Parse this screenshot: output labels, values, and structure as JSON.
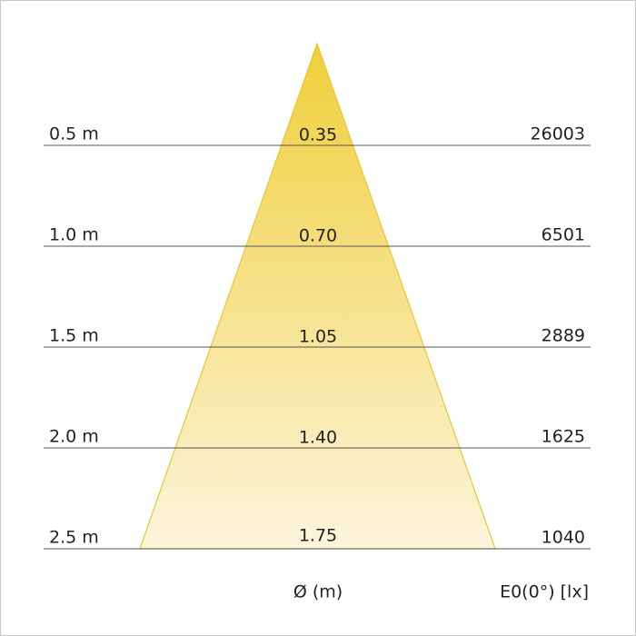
{
  "rows": [
    {
      "distance": "0.5 m",
      "diameter": "0.35",
      "illuminance": "26003"
    },
    {
      "distance": "1.0 m",
      "diameter": "0.70",
      "illuminance": "6501"
    },
    {
      "distance": "1.5 m",
      "diameter": "1.05",
      "illuminance": "2889"
    },
    {
      "distance": "2.0 m",
      "diameter": "1.40",
      "illuminance": "1625"
    },
    {
      "distance": "2.5 m",
      "diameter": "1.75",
      "illuminance": "1040"
    }
  ],
  "footer": {
    "diameter_label": "Ø (m)",
    "illuminance_label": "E0(0°) [lx]"
  }
}
